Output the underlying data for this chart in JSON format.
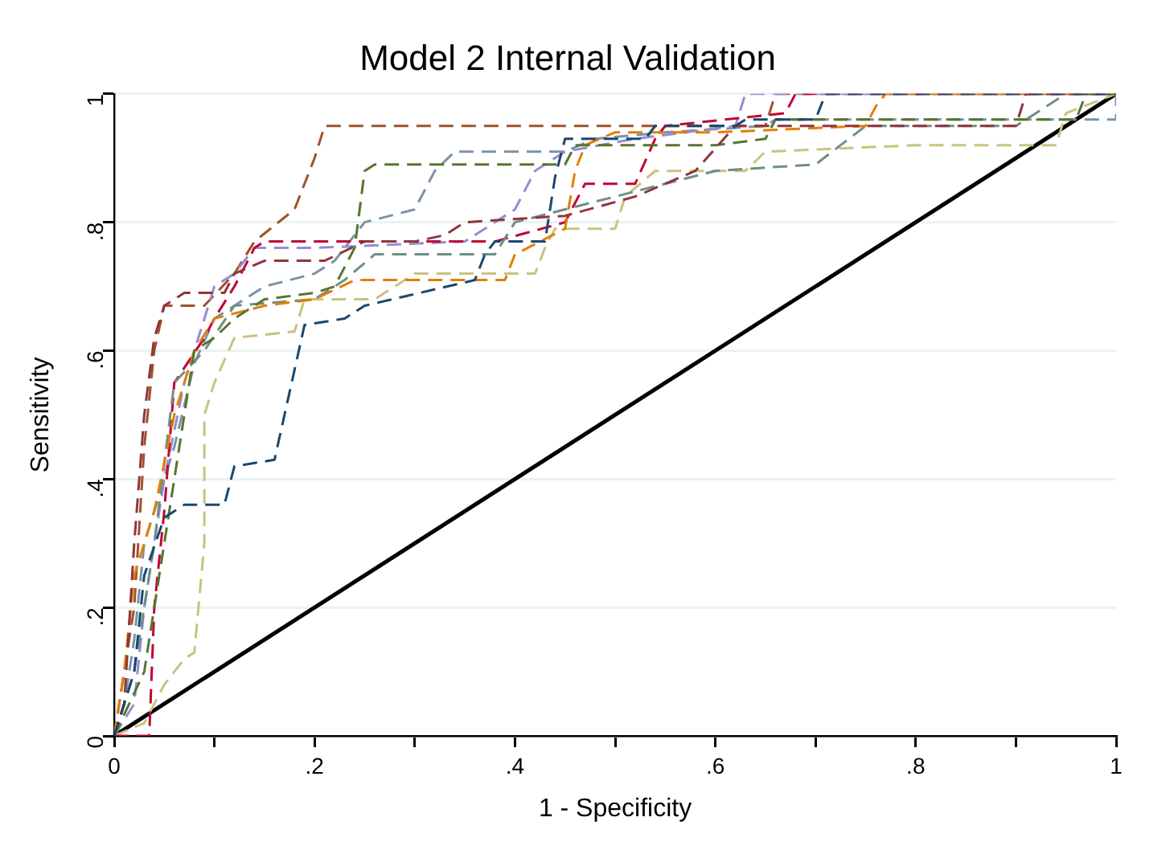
{
  "chart_data": {
    "type": "line",
    "title": "Model 2 Internal Validation",
    "xlabel": "1 - Specificity",
    "ylabel": "Sensitivity",
    "xlim": [
      0,
      1
    ],
    "ylim": [
      0,
      1
    ],
    "xticks": [
      0,
      {
        "value": 0.1,
        "label": null
      },
      {
        "value": 0.2,
        "label": ".2"
      },
      {
        "value": 0.3,
        "label": null
      },
      {
        "value": 0.4,
        "label": ".4"
      },
      {
        "value": 0.5,
        "label": null
      },
      {
        "value": 0.6,
        "label": ".6"
      },
      {
        "value": 0.7,
        "label": null
      },
      {
        "value": 0.8,
        "label": ".8"
      },
      {
        "value": 0.9,
        "label": null
      },
      1
    ],
    "yticks": [
      0,
      {
        "value": 0.2,
        "label": ".2"
      },
      {
        "value": 0.4,
        "label": ".4"
      },
      {
        "value": 0.6,
        "label": ".6"
      },
      {
        "value": 0.8,
        "label": ".8"
      },
      1
    ],
    "grid": "y",
    "legend": false,
    "marker": "none",
    "line_style": "dashed",
    "series": [
      {
        "color": "#1a476f",
        "x": [
          0,
          0.02,
          0.03,
          0.05,
          0.07,
          0.11,
          0.12,
          0.16,
          0.17,
          0.19,
          0.23,
          0.25,
          0.36,
          0.37,
          0.38,
          0.43,
          0.44,
          0.45,
          0.53,
          0.54,
          0.62,
          0.63,
          0.7,
          0.71,
          1
        ],
        "values": [
          0,
          0.1,
          0.25,
          0.34,
          0.36,
          0.36,
          0.42,
          0.43,
          0.5,
          0.64,
          0.65,
          0.67,
          0.71,
          0.75,
          0.77,
          0.77,
          0.87,
          0.93,
          0.93,
          0.95,
          0.95,
          0.96,
          0.96,
          1,
          1
        ]
      },
      {
        "color": "#90353b",
        "x": [
          0,
          0.01,
          0.02,
          0.03,
          0.04,
          0.05,
          0.07,
          0.11,
          0.12,
          0.15,
          0.21,
          0.25,
          0.3,
          0.33,
          0.35,
          0.45,
          0.52,
          0.58,
          0.62,
          0.9,
          0.91,
          1
        ],
        "values": [
          0,
          0.05,
          0.3,
          0.5,
          0.62,
          0.67,
          0.69,
          0.69,
          0.72,
          0.74,
          0.74,
          0.77,
          0.77,
          0.78,
          0.8,
          0.81,
          0.84,
          0.88,
          0.95,
          0.95,
          1,
          1
        ]
      },
      {
        "color": "#55752f",
        "x": [
          0,
          0.03,
          0.05,
          0.07,
          0.08,
          0.1,
          0.12,
          0.15,
          0.2,
          0.22,
          0.24,
          0.25,
          0.26,
          0.45,
          0.46,
          0.6,
          0.65,
          0.66,
          0.96,
          0.97,
          1
        ],
        "values": [
          0,
          0.1,
          0.3,
          0.5,
          0.6,
          0.62,
          0.65,
          0.68,
          0.69,
          0.7,
          0.76,
          0.88,
          0.89,
          0.89,
          0.92,
          0.92,
          0.93,
          0.96,
          0.96,
          1,
          1
        ]
      },
      {
        "color": "#e37e00",
        "x": [
          0,
          0.01,
          0.02,
          0.04,
          0.06,
          0.08,
          0.1,
          0.15,
          0.2,
          0.24,
          0.39,
          0.4,
          0.45,
          0.46,
          0.47,
          0.5,
          0.6,
          0.75,
          0.76,
          0.77,
          1
        ],
        "values": [
          0,
          0.1,
          0.25,
          0.35,
          0.5,
          0.6,
          0.65,
          0.67,
          0.68,
          0.71,
          0.71,
          0.75,
          0.79,
          0.88,
          0.92,
          0.94,
          0.94,
          0.95,
          0.98,
          1,
          1
        ]
      },
      {
        "color": "#6e8e84",
        "x": [
          0,
          0.02,
          0.04,
          0.06,
          0.09,
          0.12,
          0.2,
          0.23,
          0.26,
          0.38,
          0.4,
          0.5,
          0.55,
          0.6,
          0.7,
          0.75,
          0.9,
          0.95,
          1
        ],
        "values": [
          0,
          0.1,
          0.3,
          0.55,
          0.6,
          0.67,
          0.68,
          0.71,
          0.75,
          0.75,
          0.8,
          0.84,
          0.86,
          0.88,
          0.89,
          0.95,
          0.95,
          1,
          1
        ]
      },
      {
        "color": "#c10534",
        "x": [
          0,
          0.035,
          0.04,
          0.05,
          0.06,
          0.09,
          0.1,
          0.12,
          0.14,
          0.15,
          0.38,
          0.45,
          0.47,
          0.52,
          0.54,
          0.55,
          0.67,
          0.68,
          1
        ],
        "values": [
          0,
          0,
          0.2,
          0.35,
          0.55,
          0.62,
          0.65,
          0.7,
          0.76,
          0.77,
          0.77,
          0.8,
          0.86,
          0.86,
          0.93,
          0.95,
          0.97,
          1,
          1
        ]
      },
      {
        "color": "#938dd2",
        "x": [
          0,
          0.02,
          0.03,
          0.05,
          0.07,
          0.09,
          0.1,
          0.12,
          0.14,
          0.2,
          0.35,
          0.4,
          0.42,
          0.45,
          0.52,
          0.62,
          0.63,
          1
        ],
        "values": [
          0,
          0.05,
          0.2,
          0.4,
          0.55,
          0.65,
          0.7,
          0.72,
          0.76,
          0.76,
          0.77,
          0.82,
          0.88,
          0.91,
          0.93,
          0.95,
          1,
          1
        ]
      },
      {
        "color": "#cac27e",
        "x": [
          0,
          0.03,
          0.05,
          0.06,
          0.07,
          0.08,
          0.09,
          0.09,
          0.1,
          0.12,
          0.18,
          0.19,
          0.26,
          0.3,
          0.42,
          0.43,
          0.44,
          0.5,
          0.51,
          0.54,
          0.63,
          0.65,
          0.8,
          0.94,
          0.95,
          1
        ],
        "values": [
          0,
          0.02,
          0.08,
          0.1,
          0.12,
          0.13,
          0.3,
          0.5,
          0.55,
          0.62,
          0.63,
          0.68,
          0.68,
          0.72,
          0.72,
          0.76,
          0.79,
          0.79,
          0.84,
          0.88,
          0.88,
          0.91,
          0.92,
          0.92,
          0.97,
          1
        ]
      },
      {
        "color": "#a0522d",
        "x": [
          0,
          0.02,
          0.03,
          0.04,
          0.05,
          0.09,
          0.12,
          0.14,
          0.18,
          0.2,
          0.21,
          0.65,
          0.66,
          1
        ],
        "values": [
          0,
          0.2,
          0.45,
          0.6,
          0.67,
          0.67,
          0.72,
          0.77,
          0.82,
          0.9,
          0.95,
          0.95,
          1,
          1
        ]
      },
      {
        "color": "#7b92a8",
        "x": [
          0,
          0.01,
          0.02,
          0.03,
          0.06,
          0.08,
          0.1,
          0.15,
          0.2,
          0.22,
          0.25,
          0.3,
          0.32,
          0.34,
          0.45,
          0.48,
          0.55,
          0.65,
          0.66,
          1,
          1
        ],
        "values": [
          0,
          0.05,
          0.15,
          0.3,
          0.45,
          0.58,
          0.65,
          0.7,
          0.72,
          0.74,
          0.8,
          0.82,
          0.88,
          0.91,
          0.91,
          0.93,
          0.94,
          0.95,
          0.96,
          0.96,
          1
        ]
      },
      {
        "type": "line",
        "color": "#000000",
        "line_style": "solid",
        "x": [
          0,
          1
        ],
        "values": [
          0,
          1
        ]
      }
    ]
  }
}
